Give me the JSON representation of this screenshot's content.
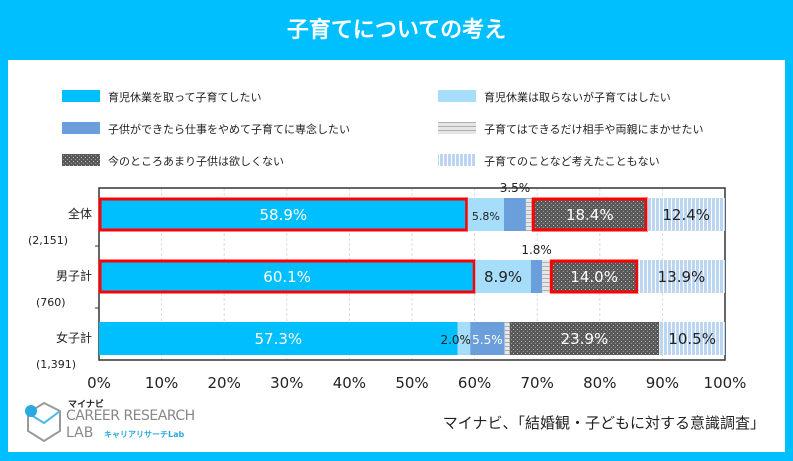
{
  "title": "子育てについての考え",
  "source": "マイナビ、「結婚観・子どもに対する意識調査」",
  "logo": {
    "top": "マイナビ",
    "line1": "CAREER RESEARCH",
    "line2": "LAB",
    "sub": "キャリアリサーチLab"
  },
  "chart_data": {
    "type": "bar",
    "orientation": "horizontal-stacked-100",
    "title": "子育てについての考え",
    "categories": [
      {
        "name": "全体",
        "n": "(2,151)"
      },
      {
        "name": "男子計",
        "n": "(760)"
      },
      {
        "name": "女子計",
        "n": "(1,391)"
      }
    ],
    "series": [
      {
        "name": "育児休業を取って子育てしたい",
        "color": "#00bfff",
        "pattern": "solid",
        "values": [
          58.9,
          60.1,
          57.3
        ],
        "labels": [
          "58.9%",
          "60.1%",
          "57.3%"
        ]
      },
      {
        "name": "育児休業は取らないが子育てはしたい",
        "color": "#a6ddfb",
        "pattern": "solid",
        "values": [
          5.8,
          8.9,
          2.0
        ],
        "labels": [
          "5.8%",
          "8.9%",
          "2.0%"
        ]
      },
      {
        "name": "子供ができたら仕事をやめて子育てに専念したい",
        "color": "#6a9fdb",
        "pattern": "solid",
        "values": [
          3.5,
          1.8,
          5.5
        ],
        "labels": [
          "3.5%",
          "1.8%",
          "5.5%"
        ]
      },
      {
        "name": "子育てはできるだけ相手や両親にまかせたい",
        "color": "#dcdcdc",
        "pattern": "hlines",
        "values": [
          1.0,
          1.3,
          0.8
        ],
        "labels": [
          "",
          "",
          ""
        ]
      },
      {
        "name": "今のところあまり子供は欲しくない",
        "color": "#595959",
        "pattern": "dots",
        "values": [
          18.4,
          14.0,
          23.9
        ],
        "labels": [
          "18.4%",
          "14.0%",
          "23.9%"
        ]
      },
      {
        "name": "子育てのことなど考えたこともない",
        "color": "#bcd6f2",
        "pattern": "vlines",
        "values": [
          12.4,
          13.9,
          10.5
        ],
        "labels": [
          "12.4%",
          "13.9%",
          "10.5%"
        ]
      }
    ],
    "highlighted": [
      [
        0,
        0
      ],
      [
        0,
        4
      ],
      [
        1,
        0
      ],
      [
        1,
        4
      ]
    ],
    "highlight_color": "#ff0000",
    "xlim": [
      0,
      100
    ],
    "xticks": [
      "0%",
      "10%",
      "20%",
      "30%",
      "40%",
      "50%",
      "60%",
      "70%",
      "80%",
      "90%",
      "100%"
    ],
    "legend": "top",
    "grid": true
  }
}
